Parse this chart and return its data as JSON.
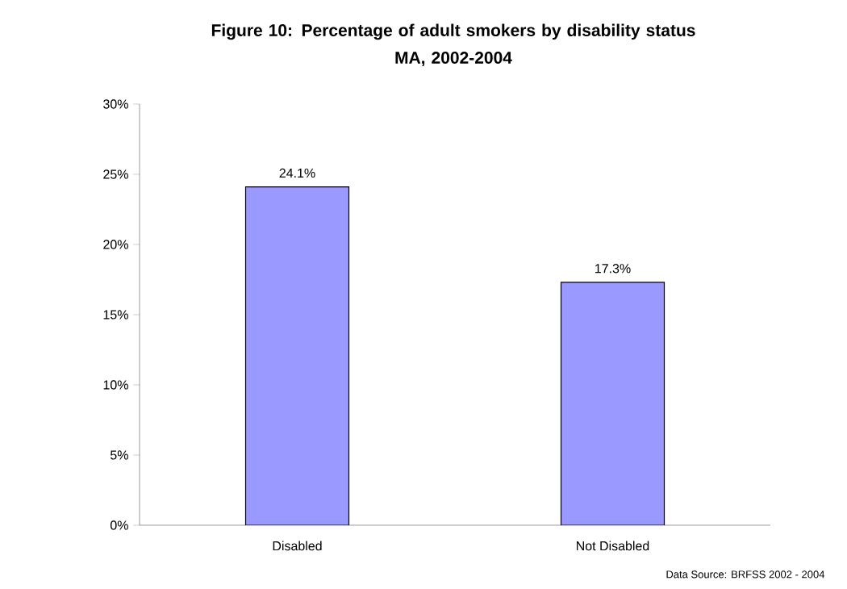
{
  "chart_data": {
    "type": "bar",
    "title": "Figure 10: Percentage of adult smokers by disability status",
    "subtitle": "MA, 2002-2004",
    "categories": [
      "Disabled",
      "Not Disabled"
    ],
    "values": [
      24.1,
      17.3
    ],
    "value_labels": [
      "24.1%",
      "17.3%"
    ],
    "color": "#9999ff",
    "ylim": [
      0,
      30
    ],
    "yticks": [
      {
        "value": 0,
        "label": "0%"
      },
      {
        "value": 5,
        "label": "5%"
      },
      {
        "value": 10,
        "label": "10%"
      },
      {
        "value": 15,
        "label": "15%"
      },
      {
        "value": 20,
        "label": "20%"
      },
      {
        "value": 25,
        "label": "25%"
      },
      {
        "value": 30,
        "label": "30%"
      }
    ],
    "annotations": [
      "Data Source: BRFSS 2002 - 2004"
    ]
  }
}
